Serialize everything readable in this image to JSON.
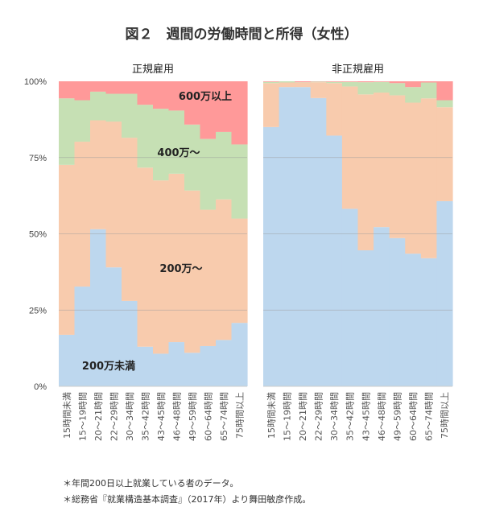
{
  "title": "図２　週間の労働時間と所得（女性）",
  "footnotes": [
    "＊年間200日以上就業している者のデータ。",
    "＊総務省『就業構造基本調査』（2017年）より舞田敏彦作成。"
  ],
  "chart_data": {
    "type": "bar",
    "stacked": true,
    "ylim": [
      0,
      100
    ],
    "yticks": [
      "0%",
      "25%",
      "50%",
      "75%",
      "100%"
    ],
    "grid": true,
    "categories": [
      "15時間未満",
      "15～19時間",
      "20～21時間",
      "22～29時間",
      "30～34時間",
      "35～42時間",
      "43～45時間",
      "46～48時間",
      "49～59時間",
      "60～64時間",
      "65～74時間",
      "75時間以上"
    ],
    "segment_names": [
      "200万未満",
      "200万～",
      "400万～",
      "600万以上"
    ],
    "colors": [
      "#bdd7ee",
      "#f8cbad",
      "#c6e0b4",
      "#ff9999"
    ],
    "panels": [
      {
        "title": "正規雇用",
        "series": [
          {
            "name": "200万未満",
            "values": [
              16.9,
              32.7,
              51.5,
              39.0,
              28.0,
              13.0,
              10.7,
              14.5,
              11.0,
              13.2,
              15.2,
              20.8
            ]
          },
          {
            "name": "200万～",
            "values": [
              55.7,
              47.5,
              35.7,
              47.8,
              53.5,
              58.7,
              56.8,
              55.2,
              53.2,
              44.7,
              46.1,
              34.2
            ]
          },
          {
            "name": "400万～",
            "values": [
              21.8,
              13.6,
              9.4,
              9.1,
              14.4,
              20.6,
              23.5,
              20.7,
              21.6,
              23.2,
              22.1,
              24.3
            ]
          },
          {
            "name": "600万以上",
            "values": [
              5.6,
              6.2,
              3.4,
              4.1,
              4.1,
              7.7,
              9.0,
              9.6,
              14.2,
              18.9,
              16.6,
              20.7
            ]
          }
        ]
      },
      {
        "title": "非正規雇用",
        "series": [
          {
            "name": "200万未満",
            "values": [
              85.0,
              98.1,
              98.1,
              94.5,
              82.2,
              58.2,
              44.6,
              52.2,
              48.6,
              43.5,
              42.0,
              60.7
            ]
          },
          {
            "name": "200万～",
            "values": [
              14.4,
              1.5,
              1.5,
              5.2,
              17.2,
              40.1,
              51.1,
              44.1,
              46.8,
              49.5,
              52.4,
              30.8
            ]
          },
          {
            "name": "400万～",
            "values": [
              0.4,
              0.4,
              0.1,
              0.2,
              0.4,
              1.5,
              4.0,
              3.5,
              4.0,
              5.1,
              5.2,
              2.3
            ]
          },
          {
            "name": "600万以上",
            "values": [
              0.2,
              0.0,
              0.3,
              0.1,
              0.2,
              0.2,
              0.3,
              0.2,
              0.6,
              1.9,
              0.4,
              6.2
            ]
          }
        ]
      }
    ],
    "annotations": [
      "600万以上",
      "400万～",
      "200万～",
      "200万未満"
    ]
  }
}
